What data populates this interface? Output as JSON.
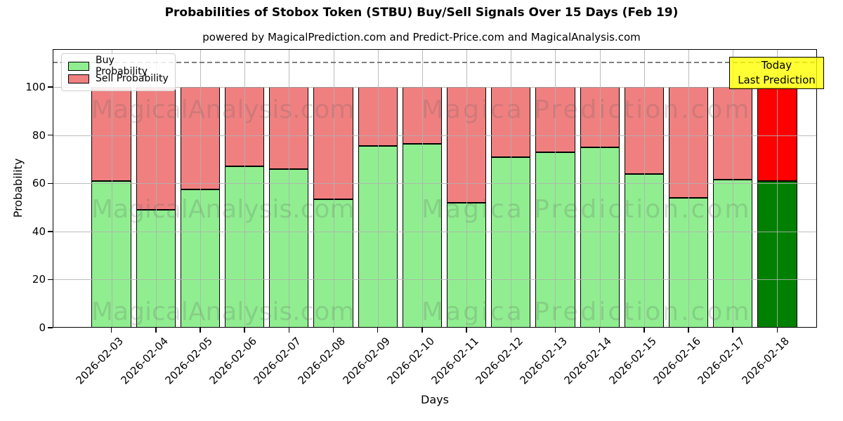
{
  "title": "Probabilities of Stobox Token (STBU) Buy/Sell Signals Over 15 Days (Feb 19)",
  "subtitle": "powered by MagicalPrediction.com and Predict-Price.com and MagicalAnalysis.com",
  "legend": {
    "items": [
      {
        "label": "Buy Probability",
        "color": "#90ee90"
      },
      {
        "label": "Sell Probability",
        "color": "#f08080"
      }
    ]
  },
  "annotation": {
    "line1": "Today",
    "line2": "Last Prediction",
    "bg_color": "#ffff00",
    "border_color": "#000000"
  },
  "watermarks": {
    "left_text": "MagicalAnalysis.com",
    "right_text": "Magica Prediction.com"
  },
  "colors": {
    "buy": "#90ee90",
    "sell": "#f08080",
    "today_buy": "#008000",
    "today_sell": "#ff0000",
    "grid": "#b0b0b0",
    "dashed_line": "#7f7f7f"
  },
  "chart_data": {
    "type": "bar",
    "stacked": true,
    "title": "Probabilities of Stobox Token (STBU) Buy/Sell Signals Over 15 Days (Feb 19)",
    "xlabel": "Days",
    "ylabel": "Probability",
    "categories": [
      "2026-02-03",
      "2026-02-04",
      "2026-02-05",
      "2026-02-06",
      "2026-02-07",
      "2026-02-08",
      "2026-02-09",
      "2026-02-10",
      "2026-02-11",
      "2026-02-12",
      "2026-02-13",
      "2026-02-14",
      "2026-02-15",
      "2026-02-16",
      "2026-02-17",
      "2026-02-18"
    ],
    "series": [
      {
        "name": "Buy Probability",
        "color": "#90ee90",
        "values": [
          61,
          49,
          57.5,
          67,
          66,
          53.5,
          75.5,
          76.5,
          52,
          71,
          73,
          75,
          64,
          54,
          61.5,
          61
        ]
      },
      {
        "name": "Sell Probability",
        "color": "#f08080",
        "values": [
          39,
          51,
          42.5,
          33,
          34,
          46.5,
          24.5,
          23.5,
          48,
          29,
          27,
          25,
          36,
          46,
          38.5,
          39
        ]
      }
    ],
    "today_index": 15,
    "today_colors": {
      "buy": "#008000",
      "sell": "#ff0000"
    },
    "yticks": [
      0,
      20,
      40,
      60,
      80,
      100
    ],
    "ylim": [
      0,
      115.8
    ],
    "dashed_line_y": 110.5,
    "grid": true,
    "legend_position": "upper left",
    "bars_reach": 100
  }
}
